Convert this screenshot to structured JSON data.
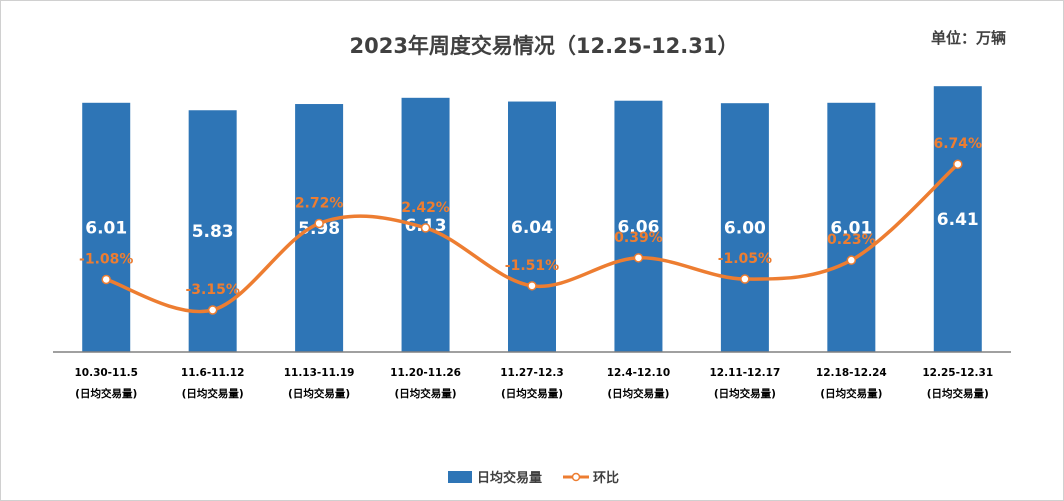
{
  "chart_data": {
    "type": "bar",
    "title": "2023年周度交易情况（12.25-12.31）",
    "unit_label": "单位：万辆",
    "categories": [
      "10.30-11.5",
      "11.6-11.12",
      "11.13-11.19",
      "11.20-11.26",
      "11.27-12.3",
      "12.4-12.10",
      "12.11-12.17",
      "12.18-12.24",
      "12.25-12.31"
    ],
    "category_sublabel": "(日均交易量)",
    "series": [
      {
        "name": "日均交易量",
        "kind": "bar",
        "color": "#2E75B6",
        "values": [
          6.01,
          5.83,
          5.98,
          6.13,
          6.04,
          6.06,
          6.0,
          6.01,
          6.41
        ],
        "labels": [
          "6.01",
          "5.83",
          "5.98",
          "6.13",
          "6.04",
          "6.06",
          "6.00",
          "6.01",
          "6.41"
        ]
      },
      {
        "name": "环比",
        "kind": "line",
        "color": "#ED7D31",
        "values": [
          -1.08,
          -3.15,
          2.72,
          2.42,
          -1.51,
          0.39,
          -1.05,
          0.23,
          6.74
        ],
        "labels": [
          "-1.08%",
          "-3.15%",
          "2.72%",
          "2.42%",
          "-1.51%",
          "0.39%",
          "-1.05%",
          "0.23%",
          "6.74%"
        ]
      }
    ],
    "bar_axis_range": [
      0,
      7.5
    ],
    "line_axis_range": [
      -6,
      15.1
    ],
    "grid": false,
    "legend_position": "bottom"
  }
}
